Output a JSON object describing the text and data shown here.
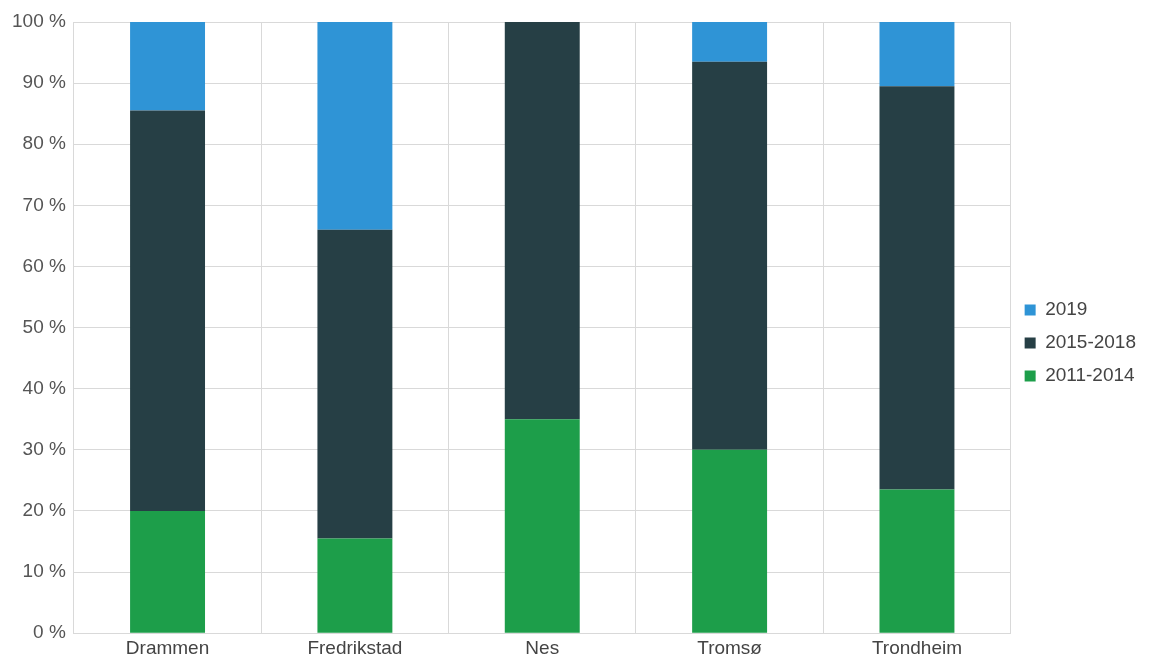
{
  "chart_data": {
    "type": "bar",
    "stacked": true,
    "categories": [
      "Drammen",
      "Fredrikstad",
      "Nes",
      "Tromsø",
      "Trondheim"
    ],
    "series": [
      {
        "name": "2011-2014",
        "color": "#1d9e4a",
        "values": [
          20,
          15.5,
          35,
          30,
          23.5
        ]
      },
      {
        "name": "2015-2018",
        "color": "#263f45",
        "values": [
          65.5,
          50.5,
          65,
          63.5,
          66
        ]
      },
      {
        "name": "2019",
        "color": "#2f94d6",
        "values": [
          14.5,
          34,
          0,
          6.5,
          10.5
        ]
      }
    ],
    "ylim": [
      0,
      100
    ],
    "yticks": [
      {
        "value": 0,
        "label": "0 %"
      },
      {
        "value": 10,
        "label": "10 %"
      },
      {
        "value": 20,
        "label": "20 %"
      },
      {
        "value": 30,
        "label": "30 %"
      },
      {
        "value": 40,
        "label": "40 %"
      },
      {
        "value": 50,
        "label": "50 %"
      },
      {
        "value": 60,
        "label": "60 %"
      },
      {
        "value": 70,
        "label": "70 %"
      },
      {
        "value": 80,
        "label": "80 %"
      },
      {
        "value": 90,
        "label": "90 %"
      },
      {
        "value": 100,
        "label": "100 %"
      }
    ],
    "grid": true,
    "legend": "right"
  }
}
